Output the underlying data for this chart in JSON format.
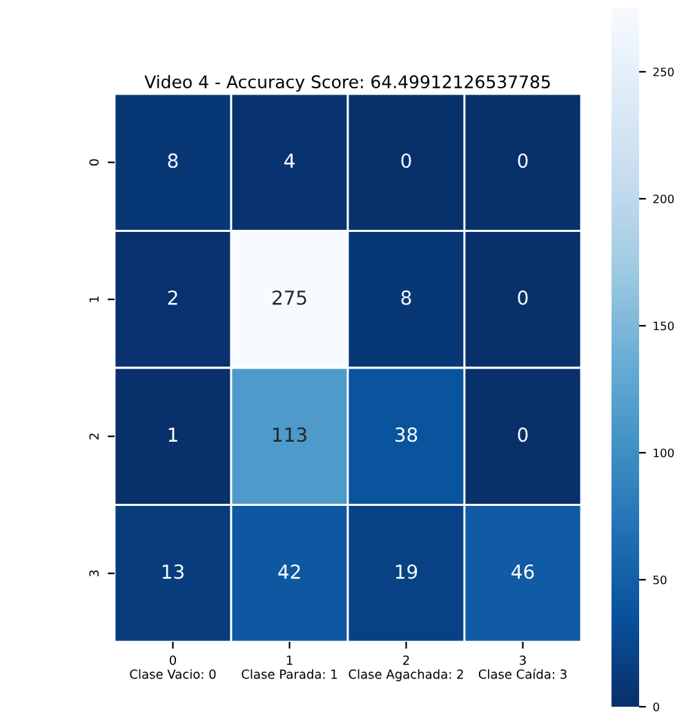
{
  "chart_data": {
    "type": "heatmap",
    "title": "Video 4 - Accuracy Score: 64.49912126537785",
    "categories": [
      "0\nClase Vacio: 0",
      "1\nClase Parada: 1",
      "2\nClase Agachada: 2",
      "3\nClase Caída: 3"
    ],
    "y_categories": [
      "0",
      "1",
      "2",
      "3"
    ],
    "cells": [
      [
        8,
        4,
        0,
        0
      ],
      [
        2,
        275,
        8,
        0
      ],
      [
        1,
        113,
        38,
        0
      ],
      [
        13,
        42,
        19,
        46
      ]
    ],
    "clim": [
      0,
      275
    ],
    "cticks": [
      0,
      50,
      100,
      150,
      200,
      250
    ],
    "data_labels": true
  }
}
